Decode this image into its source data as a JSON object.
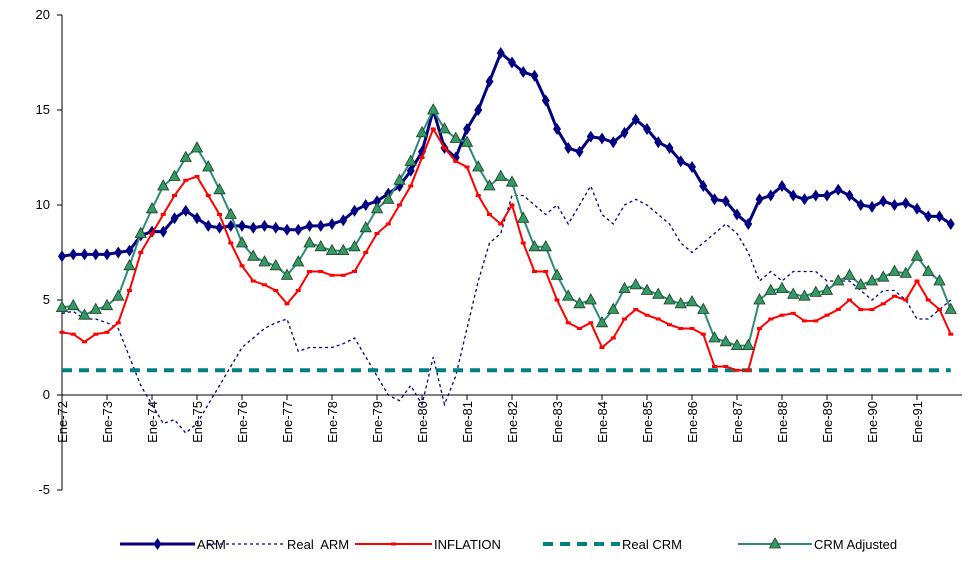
{
  "chart_data": {
    "type": "line",
    "categories": [
      "Ene-72",
      null,
      null,
      null,
      "Ene-73",
      null,
      null,
      null,
      "Ene-74",
      null,
      null,
      null,
      "Ene-75",
      null,
      null,
      null,
      "Ene-76",
      null,
      null,
      null,
      "Ene-77",
      null,
      null,
      null,
      "Ene-78",
      null,
      null,
      null,
      "Ene-79",
      null,
      null,
      null,
      "Ene-80",
      null,
      null,
      null,
      "Ene-81",
      null,
      null,
      null,
      "Ene-82",
      null,
      null,
      null,
      "Ene-83",
      null,
      null,
      null,
      "Ene-84",
      null,
      null,
      null,
      "Ene-85",
      null,
      null,
      null,
      "Ene-86",
      null,
      null,
      null,
      "Ene-87",
      null,
      null,
      null,
      "Ene-88",
      null,
      null,
      null,
      "Ene-89",
      null,
      null,
      null,
      "Ene-90",
      null,
      null,
      null,
      "Ene-91",
      null,
      null,
      null
    ],
    "ylim": [
      -5,
      20
    ],
    "yticks": [
      -5,
      0,
      5,
      10,
      15,
      20
    ],
    "grid": false,
    "legend": "bottom",
    "series": [
      {
        "name": "ARM",
        "color": "#000080",
        "marker": "diamond",
        "line_style": "solid",
        "values": [
          7.3,
          7.4,
          7.4,
          7.4,
          7.4,
          7.5,
          7.6,
          8.4,
          8.6,
          8.6,
          9.3,
          9.7,
          9.3,
          8.9,
          8.8,
          8.9,
          8.9,
          8.8,
          8.9,
          8.8,
          8.7,
          8.7,
          8.9,
          8.9,
          9.0,
          9.2,
          9.7,
          10.0,
          10.2,
          10.6,
          11.0,
          11.8,
          12.8,
          15.0,
          13.0,
          12.5,
          14.0,
          15.0,
          16.5,
          18.0,
          17.5,
          17.0,
          16.8,
          15.5,
          14.0,
          13.0,
          12.8,
          13.6,
          13.5,
          13.3,
          13.8,
          14.5,
          14.0,
          13.3,
          13.0,
          12.3,
          12.0,
          11.0,
          10.3,
          10.2,
          9.5,
          9.0,
          10.3,
          10.5,
          11.0,
          10.5,
          10.3,
          10.5,
          10.5,
          10.8,
          10.5,
          10.0,
          9.9,
          10.2,
          10.0,
          10.1,
          9.8,
          9.4,
          9.4,
          9.0
        ]
      },
      {
        "name": "Real  ARM",
        "color": "#000080",
        "marker": "none",
        "line_style": "dotted",
        "values": [
          4.3,
          4.4,
          4.0,
          4.0,
          3.8,
          3.5,
          2.0,
          0.5,
          -0.5,
          -1.5,
          -1.3,
          -2.0,
          -1.5,
          -0.5,
          0.5,
          1.5,
          2.5,
          3.0,
          3.5,
          3.8,
          4.0,
          2.3,
          2.5,
          2.5,
          2.5,
          2.7,
          3.0,
          2.0,
          1.0,
          0.0,
          -0.3,
          0.5,
          -0.5,
          2.0,
          -0.5,
          1.0,
          3.5,
          6.0,
          8.0,
          8.5,
          10.5,
          10.5,
          10.0,
          9.5,
          10.0,
          9.0,
          10.0,
          11.0,
          9.5,
          9.0,
          10.0,
          10.3,
          10.0,
          9.5,
          9.0,
          8.0,
          7.5,
          8.0,
          8.5,
          9.0,
          8.5,
          7.5,
          6.0,
          6.5,
          6.0,
          6.5,
          6.5,
          6.5,
          6.0,
          6.0,
          6.0,
          5.5,
          5.0,
          5.5,
          5.5,
          5.0,
          4.0,
          4.0,
          4.5,
          5.0
        ]
      },
      {
        "name": "INFLATION",
        "color": "#ff0000",
        "marker": "square",
        "line_style": "solid",
        "values": [
          3.3,
          3.2,
          2.8,
          3.2,
          3.3,
          3.8,
          5.5,
          7.5,
          8.5,
          9.5,
          10.5,
          11.3,
          11.5,
          10.5,
          9.5,
          8.0,
          6.8,
          6.0,
          5.8,
          5.5,
          4.8,
          5.5,
          6.5,
          6.5,
          6.3,
          6.3,
          6.5,
          7.5,
          8.5,
          9.0,
          10.0,
          11.0,
          12.5,
          14.0,
          13.0,
          12.3,
          12.0,
          10.5,
          9.5,
          9.0,
          10.0,
          8.0,
          6.5,
          6.5,
          5.0,
          3.8,
          3.5,
          3.8,
          2.5,
          3.0,
          4.0,
          4.5,
          4.2,
          4.0,
          3.7,
          3.5,
          3.5,
          3.2,
          1.5,
          1.5,
          1.3,
          1.3,
          3.5,
          4.0,
          4.2,
          4.3,
          3.9,
          3.9,
          4.2,
          4.5,
          5.0,
          4.5,
          4.5,
          4.8,
          5.2,
          5.0,
          6.0,
          5.0,
          4.5,
          3.2
        ]
      },
      {
        "name": "Real CRM",
        "color": "#008080",
        "marker": "none",
        "line_style": "dashed",
        "values": [
          1.3,
          1.3,
          1.3,
          1.3,
          1.3,
          1.3,
          1.3,
          1.3,
          1.3,
          1.3,
          1.3,
          1.3,
          1.3,
          1.3,
          1.3,
          1.3,
          1.3,
          1.3,
          1.3,
          1.3,
          1.3,
          1.3,
          1.3,
          1.3,
          1.3,
          1.3,
          1.3,
          1.3,
          1.3,
          1.3,
          1.3,
          1.3,
          1.3,
          1.3,
          1.3,
          1.3,
          1.3,
          1.3,
          1.3,
          1.3,
          1.3,
          1.3,
          1.3,
          1.3,
          1.3,
          1.3,
          1.3,
          1.3,
          1.3,
          1.3,
          1.3,
          1.3,
          1.3,
          1.3,
          1.3,
          1.3,
          1.3,
          1.3,
          1.3,
          1.3,
          1.3,
          1.3,
          1.3,
          1.3,
          1.3,
          1.3,
          1.3,
          1.3,
          1.3,
          1.3,
          1.3,
          1.3,
          1.3,
          1.3,
          1.3,
          1.3,
          1.3,
          1.3,
          1.3,
          1.3
        ]
      },
      {
        "name": "CRM Adjusted",
        "color": "#339966",
        "marker": "triangle",
        "line_style": "solid",
        "values": [
          4.6,
          4.7,
          4.2,
          4.5,
          4.7,
          5.2,
          6.8,
          8.5,
          9.8,
          11.0,
          11.5,
          12.5,
          13.0,
          12.0,
          10.8,
          9.5,
          8.0,
          7.3,
          7.0,
          6.8,
          6.3,
          7.0,
          8.0,
          7.8,
          7.6,
          7.6,
          7.8,
          8.8,
          9.8,
          10.3,
          11.3,
          12.3,
          13.8,
          15.0,
          14.0,
          13.5,
          13.3,
          12.0,
          11.0,
          11.5,
          11.2,
          9.3,
          7.8,
          7.8,
          6.3,
          5.2,
          4.8,
          5.0,
          3.8,
          4.5,
          5.6,
          5.8,
          5.5,
          5.3,
          5.0,
          4.8,
          4.9,
          4.5,
          3.0,
          2.8,
          2.6,
          2.6,
          5.0,
          5.5,
          5.6,
          5.3,
          5.2,
          5.4,
          5.5,
          6.0,
          6.3,
          5.8,
          6.0,
          6.2,
          6.5,
          6.4,
          7.3,
          6.5,
          6.0,
          4.5
        ]
      }
    ]
  }
}
